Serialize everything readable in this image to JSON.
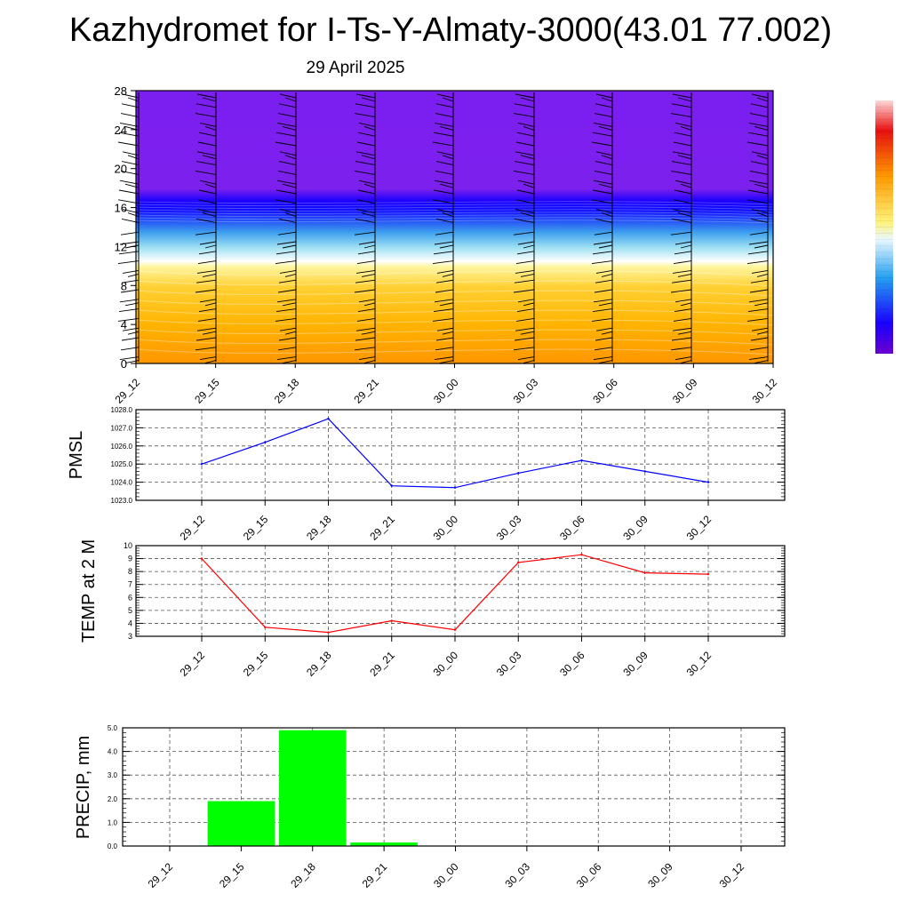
{
  "header": {
    "title": "Kazhydromet for I-Ts-Y-Almaty-3000(43.01 77.002)",
    "date": "29 April 2025"
  },
  "colors": {
    "pmsl_line": "#0000ff",
    "temp_line": "#ff0000",
    "precip_bar": "#00ff00",
    "profile_top": "#7a1cf0",
    "profile_mid": "#1500ff",
    "profile_low": "#ffb300"
  },
  "chart_data": [
    {
      "type": "heatmap",
      "title": "",
      "xlabel": "",
      "ylabel": "",
      "x": [
        "29_12",
        "29_15",
        "29_18",
        "29_21",
        "30_00",
        "30_03",
        "30_06",
        "30_09",
        "30_12"
      ],
      "yticks": [
        0,
        4,
        8,
        12,
        16,
        20,
        24,
        28
      ],
      "ylim": [
        0,
        28
      ],
      "colorbar": "right"
    },
    {
      "type": "line",
      "ylabel": "PMSL",
      "x": [
        "29_12",
        "29_15",
        "29_18",
        "29_21",
        "30_00",
        "30_03",
        "30_06",
        "30_09",
        "30_12"
      ],
      "series": [
        {
          "values": [
            1025.0,
            1026.2,
            1027.5,
            1023.8,
            1023.7,
            1024.5,
            1025.2,
            1024.6,
            1024.0
          ]
        }
      ],
      "yticks": [
        "1023.0",
        "1024.0",
        "1025.0",
        "1026.0",
        "1027.0",
        "1028.0"
      ],
      "ylim": [
        1023,
        1028
      ],
      "grid": true
    },
    {
      "type": "line",
      "ylabel": "TEMP at 2 M",
      "x": [
        "29_12",
        "29_15",
        "29_18",
        "29_21",
        "30_00",
        "30_03",
        "30_06",
        "30_09",
        "30_12"
      ],
      "series": [
        {
          "values": [
            9.0,
            3.7,
            3.3,
            4.2,
            3.5,
            8.7,
            9.3,
            7.9,
            7.8
          ]
        }
      ],
      "yticks": [
        "3",
        "4",
        "5",
        "6",
        "7",
        "8",
        "9",
        "10"
      ],
      "ylim": [
        3,
        10
      ],
      "grid": true
    },
    {
      "type": "bar",
      "ylabel": "PRECIP, mm",
      "categories": [
        "29_12",
        "29_15",
        "29_18",
        "29_21",
        "30_00",
        "30_03",
        "30_06",
        "30_09",
        "30_12"
      ],
      "values": [
        0.0,
        1.9,
        4.9,
        0.15,
        0.0,
        0.0,
        0.0,
        0.0,
        0.0
      ],
      "yticks": [
        "0.0",
        "1.0",
        "2.0",
        "3.0",
        "4.0",
        "5.0"
      ],
      "ylim": [
        0,
        5
      ],
      "grid": true
    }
  ]
}
